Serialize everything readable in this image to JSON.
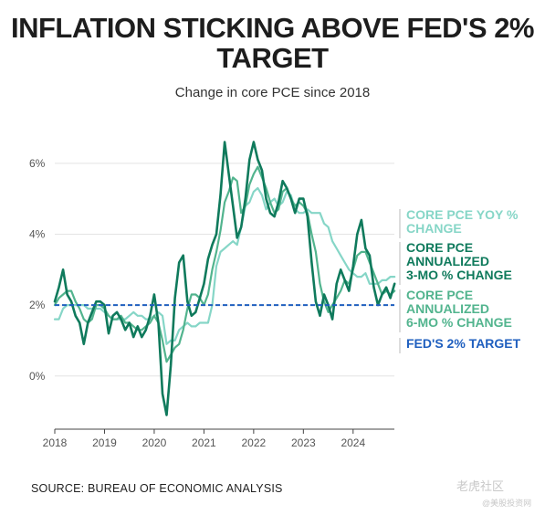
{
  "title": "INFLATION STICKING ABOVE FED'S 2% TARGET",
  "subtitle": "Change in core PCE since 2018",
  "source": "SOURCE: BUREAU OF ECONOMIC ANALYSIS",
  "watermark": "老虎社区",
  "watermark_sub": "@美股投资网",
  "chart_data": {
    "type": "line",
    "title": "INFLATION STICKING ABOVE FED'S 2% TARGET",
    "subtitle": "Change in core PCE since 2018",
    "xlabel": "",
    "ylabel": "",
    "x_ticks": [
      "2018",
      "2019",
      "2020",
      "2021",
      "2022",
      "2023",
      "2024"
    ],
    "y_ticks": [
      "6%",
      "4%",
      "2%",
      "0%"
    ],
    "ylim": [
      -1.5,
      7.0
    ],
    "xlim": [
      2018.0,
      2024.83
    ],
    "grid": true,
    "legend": "right",
    "reference_line": {
      "name": "FED'S 2% TARGET",
      "value": 2.0,
      "color": "#1f5fbf"
    },
    "series": [
      {
        "name": "CORE PCE YOY % CHANGE",
        "color": "#86d6c7",
        "x": [
          2018.0,
          2018.083,
          2018.167,
          2018.25,
          2018.333,
          2018.417,
          2018.5,
          2018.583,
          2018.667,
          2018.75,
          2018.833,
          2018.917,
          2019.0,
          2019.083,
          2019.167,
          2019.25,
          2019.333,
          2019.417,
          2019.5,
          2019.583,
          2019.667,
          2019.75,
          2019.833,
          2019.917,
          2020.0,
          2020.083,
          2020.167,
          2020.25,
          2020.333,
          2020.417,
          2020.5,
          2020.583,
          2020.667,
          2020.75,
          2020.833,
          2020.917,
          2021.0,
          2021.083,
          2021.167,
          2021.25,
          2021.333,
          2021.417,
          2021.5,
          2021.583,
          2021.667,
          2021.75,
          2021.833,
          2021.917,
          2022.0,
          2022.083,
          2022.167,
          2022.25,
          2022.333,
          2022.417,
          2022.5,
          2022.583,
          2022.667,
          2022.75,
          2022.833,
          2022.917,
          2023.0,
          2023.083,
          2023.167,
          2023.25,
          2023.333,
          2023.417,
          2023.5,
          2023.583,
          2023.667,
          2023.75,
          2023.833,
          2023.917,
          2024.0,
          2024.083,
          2024.167,
          2024.25,
          2024.333,
          2024.417,
          2024.5,
          2024.583,
          2024.667,
          2024.75,
          2024.833
        ],
        "values": [
          1.6,
          1.6,
          1.9,
          2.0,
          2.0,
          2.0,
          2.0,
          2.0,
          1.9,
          1.9,
          1.9,
          1.9,
          1.8,
          1.7,
          1.6,
          1.6,
          1.6,
          1.6,
          1.7,
          1.8,
          1.7,
          1.7,
          1.6,
          1.6,
          1.7,
          1.8,
          1.7,
          0.9,
          1.0,
          1.0,
          1.3,
          1.4,
          1.5,
          1.4,
          1.4,
          1.5,
          1.5,
          1.5,
          2.0,
          3.1,
          3.5,
          3.6,
          3.7,
          3.8,
          3.7,
          4.2,
          4.8,
          4.9,
          5.2,
          5.3,
          5.1,
          4.7,
          4.9,
          5.0,
          4.8,
          4.9,
          5.2,
          5.1,
          4.7,
          4.6,
          4.6,
          4.7,
          4.6,
          4.6,
          4.6,
          4.3,
          4.2,
          3.8,
          3.6,
          3.4,
          3.2,
          3.0,
          2.9,
          2.8,
          2.8,
          2.9,
          2.6,
          2.6,
          2.6,
          2.7,
          2.7,
          2.8,
          2.8
        ]
      },
      {
        "name": "CORE PCE ANNUALIZED 3-MO % CHANGE",
        "color": "#0f7a5c",
        "x": [
          2018.0,
          2018.083,
          2018.167,
          2018.25,
          2018.333,
          2018.417,
          2018.5,
          2018.583,
          2018.667,
          2018.75,
          2018.833,
          2018.917,
          2019.0,
          2019.083,
          2019.167,
          2019.25,
          2019.333,
          2019.417,
          2019.5,
          2019.583,
          2019.667,
          2019.75,
          2019.833,
          2019.917,
          2020.0,
          2020.083,
          2020.167,
          2020.25,
          2020.333,
          2020.417,
          2020.5,
          2020.583,
          2020.667,
          2020.75,
          2020.833,
          2020.917,
          2021.0,
          2021.083,
          2021.167,
          2021.25,
          2021.333,
          2021.417,
          2021.5,
          2021.583,
          2021.667,
          2021.75,
          2021.833,
          2021.917,
          2022.0,
          2022.083,
          2022.167,
          2022.25,
          2022.333,
          2022.417,
          2022.5,
          2022.583,
          2022.667,
          2022.75,
          2022.833,
          2022.917,
          2023.0,
          2023.083,
          2023.167,
          2023.25,
          2023.333,
          2023.417,
          2023.5,
          2023.583,
          2023.667,
          2023.75,
          2023.833,
          2023.917,
          2024.0,
          2024.083,
          2024.167,
          2024.25,
          2024.333,
          2024.417,
          2024.5,
          2024.583,
          2024.667,
          2024.75,
          2024.833
        ],
        "values": [
          2.1,
          2.5,
          3.0,
          2.3,
          2.1,
          1.7,
          1.5,
          0.9,
          1.5,
          1.8,
          2.1,
          2.1,
          2.0,
          1.2,
          1.7,
          1.8,
          1.6,
          1.3,
          1.5,
          1.1,
          1.4,
          1.1,
          1.3,
          1.7,
          2.3,
          1.5,
          -0.5,
          -1.1,
          0.3,
          2.2,
          3.2,
          3.4,
          2.1,
          1.7,
          1.8,
          2.2,
          2.6,
          3.3,
          3.7,
          4.0,
          5.1,
          6.6,
          5.7,
          4.8,
          3.9,
          4.2,
          5.0,
          6.1,
          6.6,
          6.1,
          5.8,
          5.0,
          4.6,
          4.5,
          4.9,
          5.5,
          5.3,
          5.0,
          4.6,
          5.0,
          5.0,
          4.5,
          3.2,
          2.1,
          1.7,
          2.3,
          2.0,
          1.6,
          2.6,
          3.0,
          2.7,
          2.4,
          3.1,
          4.0,
          4.4,
          3.6,
          3.4,
          2.5,
          2.0,
          2.3,
          2.5,
          2.2,
          2.6
        ]
      },
      {
        "name": "CORE PCE ANNUALIZED 6-MO % CHANGE",
        "color": "#52b48e",
        "x": [
          2018.0,
          2018.083,
          2018.167,
          2018.25,
          2018.333,
          2018.417,
          2018.5,
          2018.583,
          2018.667,
          2018.75,
          2018.833,
          2018.917,
          2019.0,
          2019.083,
          2019.167,
          2019.25,
          2019.333,
          2019.417,
          2019.5,
          2019.583,
          2019.667,
          2019.75,
          2019.833,
          2019.917,
          2020.0,
          2020.083,
          2020.167,
          2020.25,
          2020.333,
          2020.417,
          2020.5,
          2020.583,
          2020.667,
          2020.75,
          2020.833,
          2020.917,
          2021.0,
          2021.083,
          2021.167,
          2021.25,
          2021.333,
          2021.417,
          2021.5,
          2021.583,
          2021.667,
          2021.75,
          2021.833,
          2021.917,
          2022.0,
          2022.083,
          2022.167,
          2022.25,
          2022.333,
          2022.417,
          2022.5,
          2022.583,
          2022.667,
          2022.75,
          2022.833,
          2022.917,
          2023.0,
          2023.083,
          2023.167,
          2023.25,
          2023.333,
          2023.417,
          2023.5,
          2023.583,
          2023.667,
          2023.75,
          2023.833,
          2023.917,
          2024.0,
          2024.083,
          2024.167,
          2024.25,
          2024.333,
          2024.417,
          2024.5,
          2024.583,
          2024.667,
          2024.75,
          2024.833
        ],
        "values": [
          2.0,
          2.2,
          2.3,
          2.4,
          2.4,
          2.1,
          1.9,
          1.6,
          1.5,
          1.6,
          2.0,
          2.0,
          1.9,
          1.7,
          1.6,
          1.6,
          1.7,
          1.5,
          1.5,
          1.4,
          1.3,
          1.3,
          1.4,
          1.5,
          1.7,
          1.5,
          1.0,
          0.4,
          0.6,
          0.8,
          0.9,
          1.3,
          1.9,
          2.3,
          2.3,
          2.2,
          2.0,
          2.3,
          3.0,
          3.5,
          4.1,
          4.9,
          5.2,
          5.6,
          5.5,
          4.6,
          4.8,
          5.4,
          5.7,
          5.9,
          5.6,
          5.3,
          4.9,
          4.6,
          4.7,
          5.2,
          5.3,
          5.0,
          4.8,
          4.9,
          4.8,
          4.6,
          4.0,
          3.5,
          2.6,
          2.1,
          1.8,
          2.0,
          2.2,
          2.4,
          2.7,
          2.6,
          3.0,
          3.4,
          3.5,
          3.5,
          3.2,
          2.9,
          2.6,
          2.3,
          2.4,
          2.3,
          2.4
        ]
      }
    ]
  },
  "legend": {
    "yoy": [
      "CORE PCE YOY %",
      "CHANGE"
    ],
    "m3": [
      "CORE PCE",
      "ANNUALIZED",
      "3-MO % CHANGE"
    ],
    "m6": [
      "CORE PCE",
      "ANNUALIZED",
      "6-MO % CHANGE"
    ],
    "fed": [
      "FED'S 2% TARGET"
    ]
  }
}
